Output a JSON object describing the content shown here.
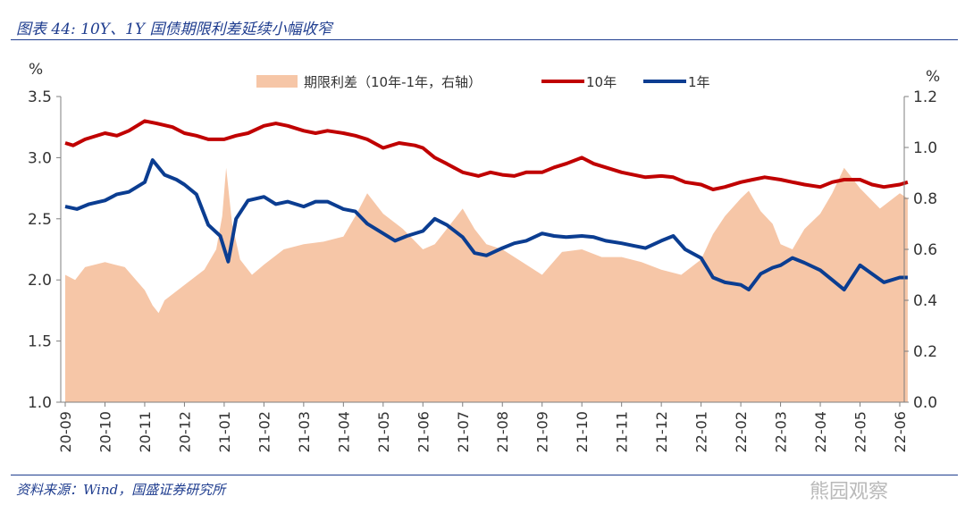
{
  "header": {
    "title": "图表 44:  10Y、1Y 国债期限利差延续小幅收窄"
  },
  "footer": {
    "source": "资料来源：Wind，国盛证券研究所",
    "watermark": "熊园观察"
  },
  "chart_data": {
    "type": "line",
    "left_axis": {
      "unit": "%",
      "ticks": [
        1.0,
        1.5,
        2.0,
        2.5,
        3.0,
        3.5
      ],
      "range": [
        1.0,
        3.5
      ]
    },
    "right_axis": {
      "unit": "%",
      "ticks": [
        0.0,
        0.2,
        0.4,
        0.6,
        0.8,
        1.0,
        1.2
      ],
      "range": [
        0.0,
        1.2
      ]
    },
    "x_ticks": [
      "20-09",
      "20-10",
      "20-11",
      "20-12",
      "21-01",
      "21-02",
      "21-03",
      "21-04",
      "21-05",
      "21-06",
      "21-07",
      "21-08",
      "21-09",
      "21-10",
      "21-11",
      "21-12",
      "22-01",
      "22-02",
      "22-03",
      "22-04",
      "22-05",
      "22-06"
    ],
    "legend": [
      "期限利差（10年-1年，右轴）",
      "10年",
      "1年"
    ],
    "colors": {
      "spread": "#f6c6a7",
      "y10": "#c00000",
      "y1": "#0b3d91",
      "axis": "#7f7f7f"
    },
    "series": [
      {
        "name": "期限利差（10年-1年，右轴）",
        "type": "area",
        "axis": "right",
        "x": [
          0,
          0.25,
          0.5,
          1,
          1.5,
          2,
          2.2,
          2.35,
          2.5,
          3,
          3.5,
          3.8,
          3.95,
          4.05,
          4.2,
          4.4,
          4.7,
          5,
          5.5,
          6,
          6.5,
          7,
          7.3,
          7.6,
          8,
          8.5,
          9,
          9.3,
          9.6,
          10,
          10.3,
          10.6,
          11,
          11.5,
          12,
          12.5,
          13,
          13.5,
          14,
          14.5,
          15,
          15.5,
          16,
          16.3,
          16.6,
          17,
          17.2,
          17.5,
          17.8,
          18,
          18.3,
          18.6,
          19,
          19.3,
          19.6,
          20,
          20.5,
          21,
          21.2
        ],
        "y": [
          0.5,
          0.48,
          0.53,
          0.55,
          0.53,
          0.44,
          0.38,
          0.35,
          0.4,
          0.46,
          0.52,
          0.6,
          0.73,
          0.92,
          0.7,
          0.56,
          0.5,
          0.54,
          0.6,
          0.62,
          0.63,
          0.65,
          0.73,
          0.82,
          0.74,
          0.68,
          0.6,
          0.62,
          0.68,
          0.76,
          0.68,
          0.62,
          0.6,
          0.55,
          0.5,
          0.59,
          0.6,
          0.57,
          0.57,
          0.55,
          0.52,
          0.5,
          0.56,
          0.66,
          0.73,
          0.8,
          0.83,
          0.75,
          0.7,
          0.62,
          0.6,
          0.68,
          0.74,
          0.82,
          0.92,
          0.84,
          0.76,
          0.82,
          0.8
        ]
      },
      {
        "name": "10年",
        "type": "line",
        "axis": "left",
        "x": [
          0,
          0.2,
          0.5,
          1,
          1.3,
          1.6,
          2,
          2.3,
          2.7,
          3,
          3.3,
          3.6,
          4,
          4.3,
          4.6,
          5,
          5.3,
          5.6,
          6,
          6.3,
          6.6,
          7,
          7.3,
          7.6,
          8,
          8.4,
          8.8,
          9,
          9.3,
          9.6,
          10,
          10.4,
          10.7,
          11,
          11.3,
          11.6,
          12,
          12.3,
          12.6,
          13,
          13.3,
          13.6,
          14,
          14.3,
          14.6,
          15,
          15.3,
          15.6,
          16,
          16.3,
          16.6,
          17,
          17.3,
          17.6,
          18,
          18.3,
          18.6,
          19,
          19.3,
          19.6,
          20,
          20.3,
          20.6,
          21,
          21.2
        ],
        "y": [
          3.12,
          3.1,
          3.15,
          3.2,
          3.18,
          3.22,
          3.3,
          3.28,
          3.25,
          3.2,
          3.18,
          3.15,
          3.15,
          3.18,
          3.2,
          3.26,
          3.28,
          3.26,
          3.22,
          3.2,
          3.22,
          3.2,
          3.18,
          3.15,
          3.08,
          3.12,
          3.1,
          3.08,
          3.0,
          2.95,
          2.88,
          2.85,
          2.88,
          2.86,
          2.85,
          2.88,
          2.88,
          2.92,
          2.95,
          3.0,
          2.95,
          2.92,
          2.88,
          2.86,
          2.84,
          2.85,
          2.84,
          2.8,
          2.78,
          2.74,
          2.76,
          2.8,
          2.82,
          2.84,
          2.82,
          2.8,
          2.78,
          2.76,
          2.8,
          2.82,
          2.82,
          2.78,
          2.76,
          2.78,
          2.8
        ]
      },
      {
        "name": "1年",
        "type": "line",
        "axis": "left",
        "x": [
          0,
          0.3,
          0.6,
          1,
          1.3,
          1.6,
          2,
          2.2,
          2.5,
          2.8,
          3,
          3.3,
          3.6,
          3.9,
          4.1,
          4.3,
          4.6,
          5,
          5.3,
          5.6,
          6,
          6.3,
          6.6,
          7,
          7.3,
          7.6,
          8,
          8.3,
          8.6,
          9,
          9.3,
          9.6,
          10,
          10.3,
          10.6,
          11,
          11.3,
          11.6,
          12,
          12.3,
          12.6,
          13,
          13.3,
          13.6,
          14,
          14.3,
          14.6,
          15,
          15.3,
          15.6,
          16,
          16.3,
          16.6,
          17,
          17.2,
          17.5,
          17.8,
          18,
          18.3,
          18.6,
          19,
          19.3,
          19.6,
          20,
          20.3,
          20.6,
          21,
          21.2
        ],
        "y": [
          2.6,
          2.58,
          2.62,
          2.65,
          2.7,
          2.72,
          2.8,
          2.98,
          2.86,
          2.82,
          2.78,
          2.7,
          2.45,
          2.36,
          2.15,
          2.5,
          2.65,
          2.68,
          2.62,
          2.64,
          2.6,
          2.64,
          2.64,
          2.58,
          2.56,
          2.46,
          2.38,
          2.32,
          2.36,
          2.4,
          2.5,
          2.45,
          2.35,
          2.22,
          2.2,
          2.26,
          2.3,
          2.32,
          2.38,
          2.36,
          2.35,
          2.36,
          2.35,
          2.32,
          2.3,
          2.28,
          2.26,
          2.32,
          2.36,
          2.25,
          2.18,
          2.02,
          1.98,
          1.96,
          1.92,
          2.05,
          2.1,
          2.12,
          2.18,
          2.14,
          2.08,
          2.0,
          1.92,
          2.12,
          2.05,
          1.98,
          2.02,
          2.02
        ]
      }
    ]
  }
}
